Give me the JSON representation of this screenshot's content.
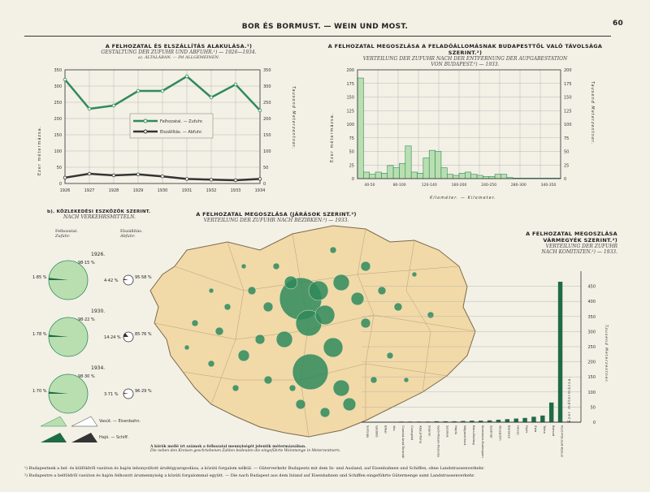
{
  "page": {
    "header": "BOR ÉS BORMUST. — WEIN UND MOST.",
    "page_number": "60"
  },
  "panel_a": {
    "title": "A FELHOZATAL ÉS ELSZÁLLÍTÁS ALAKULÁSA.¹)",
    "subtitle": "GESTALTUNG DER ZUFUHR UND ABFUHR.¹)  —  1926—1934.",
    "section": "a). ÁLTALÁBAN. — IM ALLGEMEINEN.",
    "left_axis_label": "Ezer métermázsa.",
    "right_axis_label": "Tausend Meterzentner.",
    "legend_zufuhr": "Felhozatal. — Zufuhr.",
    "legend_abfuhr": "Elszállítás. — Abfuhr."
  },
  "panel_top_right": {
    "title": "A FELHOZATAL MEGOSZLÁSA A FELADÓÁLLOMÁSNAK BUDAPESTTŐL VALÓ TÁVOLSÁGA SZERINT.²)",
    "subtitle": "VERTEILUNG DER ZUFUHR NACH DER ENTFERNUNG DER AUFGABESTATION",
    "subtitle2": "VON BUDAPEST.²)  —  1933.",
    "left_axis_label": "Ezer métermázsa.",
    "right_axis_label": "Tausend Meterzentner.",
    "xlabel": "Kilométer. — Kilometer."
  },
  "panel_b": {
    "title": "b). KÖZLEKEDÉSI ESZKÖZÖK SZERINT.",
    "subtitle": "NACH VERKEHRSMITTELN.",
    "col_left": "Felhozatal.",
    "col_left_de": "Zufuhr.",
    "col_right": "Elszállítás.",
    "col_right_de": "Abfuhr.",
    "legend_rail": "Vasút. — Eisenbahn.",
    "legend_ship": "Hajó. — Schiff.",
    "years": [
      {
        "year": "1926.",
        "zufuhr_big": "98·15 %",
        "zufuhr_small": "1·85 %",
        "abfuhr_small": "4·42 %",
        "abfuhr_big": "95·58 %"
      },
      {
        "year": "1930.",
        "zufuhr_big": "98·22 %",
        "zufuhr_small": "1·78 %",
        "abfuhr_small": "14·24 %",
        "abfuhr_big": "85·76 %"
      },
      {
        "year": "1934.",
        "zufuhr_big": "98·30 %",
        "zufuhr_small": "1·70 %",
        "abfuhr_small": "3·71 %",
        "abfuhr_big": "96·29 %"
      }
    ]
  },
  "panel_map": {
    "title": "A FELHOZATAL MEGOSZLÁSA (JÁRÁSOK SZERINT.²)",
    "subtitle": "VERTEILUNG DER ZUFUHR NACH BEZIRKEN.²)  —  1933.",
    "note1": "A körök mellé írt számok a felhozatal mennyiségét jelentik métermázsában.",
    "note2": "Die neben den Kreisen geschriebenen Zahlen bedeuten die eingeführte Weinmenge in Meterzentnern."
  },
  "panel_right": {
    "title": "A FELHOZATAL MEGOSZLÁSA",
    "title2": "VÁRMEGYÉK SZERINT.²)",
    "subtitle": "VERTEILUNG DER ZUFUHR",
    "subtitle2": "NACH KOMITATEN.²)  —  1933.",
    "left_axis_label": "Ezer métermázsa.",
    "right_axis_label": "Tausend Meterzentner."
  },
  "footnotes": {
    "f1": "¹) Budapestnek a bel- és külföldről vasúton és hajón lebonyolított árufelgyarapodása, a közúti forgalom nélkül. — Güterverkehr Budapests mit dem In- und Ausland, auf Eisenbahnen und Schiffen, ohne Landstrassenverkehr.",
    "f2": "²) Budapestre a belföldről vasúton és hajón felhozott árumennyiség a közúti forgalommal együtt. — Die nach Budapest aus dem Inland auf Eisenbahnen und Schiffen eingeführte Gütermenge samt Landstrassenverkehr."
  },
  "colors": {
    "green": "#2f8a5c",
    "dark": "#333333",
    "hist_fill": "#b9dfb0",
    "map_fill": "#f2d9a8"
  },
  "chart_data": [
    {
      "type": "line",
      "x": [
        "1926",
        "1927",
        "1928",
        "1929",
        "1930",
        "1931",
        "1932",
        "1933",
        "1934"
      ],
      "series": [
        {
          "name": "Felhozatal. — Zufuhr.",
          "values": [
            320,
            230,
            240,
            285,
            285,
            330,
            265,
            305,
            225
          ]
        },
        {
          "name": "Elszállítás. — Abfuhr.",
          "values": [
            18,
            30,
            25,
            28,
            22,
            14,
            12,
            10,
            14
          ]
        }
      ],
      "ylim": [
        0,
        350
      ],
      "yticks": [
        0,
        50,
        100,
        150,
        200,
        250,
        300,
        350
      ]
    },
    {
      "type": "bar",
      "categories": [
        "0",
        "10",
        "20",
        "30",
        "40",
        "50",
        "60",
        "70",
        "80",
        "90",
        "100",
        "110",
        "120",
        "130",
        "140",
        "150",
        "160",
        "170",
        "180",
        "190",
        "200",
        "210",
        "220",
        "230",
        "240",
        "250",
        "260",
        "270",
        "280",
        "290",
        "300",
        "310",
        "320",
        "330"
      ],
      "values": [
        185,
        12,
        8,
        12,
        10,
        24,
        20,
        28,
        60,
        12,
        10,
        38,
        52,
        50,
        20,
        8,
        6,
        10,
        12,
        8,
        6,
        4,
        4,
        8,
        8,
        2,
        1,
        1,
        1,
        1,
        1,
        1,
        1,
        1
      ],
      "ylim": [
        0,
        200
      ],
      "yticks": [
        0,
        25,
        50,
        75,
        100,
        125,
        150,
        175,
        200
      ],
      "xticks": [
        "40-50",
        "80-100",
        "120-140",
        "160-200",
        "240-250",
        "280-300",
        "340-350"
      ]
    },
    {
      "type": "bar",
      "categories": [
        "Somogy",
        "Gödöllő",
        "Bihar",
        "Vas",
        "Csanád-Arad-Torontál",
        "Csongrád",
        "Abaúj-Torna",
        "Sopron",
        "Győr-Moson-Pozsony",
        "Szolnok",
        "Hajdú",
        "Nógrád-Hont",
        "Bács-Bodrog",
        "Komárom-Esztergom",
        "Szatmár",
        "Veszprém",
        "Baranya",
        "Heves",
        "Fejér",
        "Zala",
        "Tolna",
        "Borsod",
        "Pest-Pilis-Solt-Kiskun"
      ],
      "values": [
        1,
        1,
        1,
        1,
        2,
        2,
        2,
        2,
        3,
        3,
        3,
        4,
        5,
        5,
        6,
        8,
        10,
        12,
        14,
        18,
        22,
        65,
        465
      ],
      "ylim": [
        0,
        500
      ],
      "yticks": [
        0,
        50,
        100,
        150,
        200,
        250,
        300,
        350,
        400,
        450
      ]
    }
  ]
}
